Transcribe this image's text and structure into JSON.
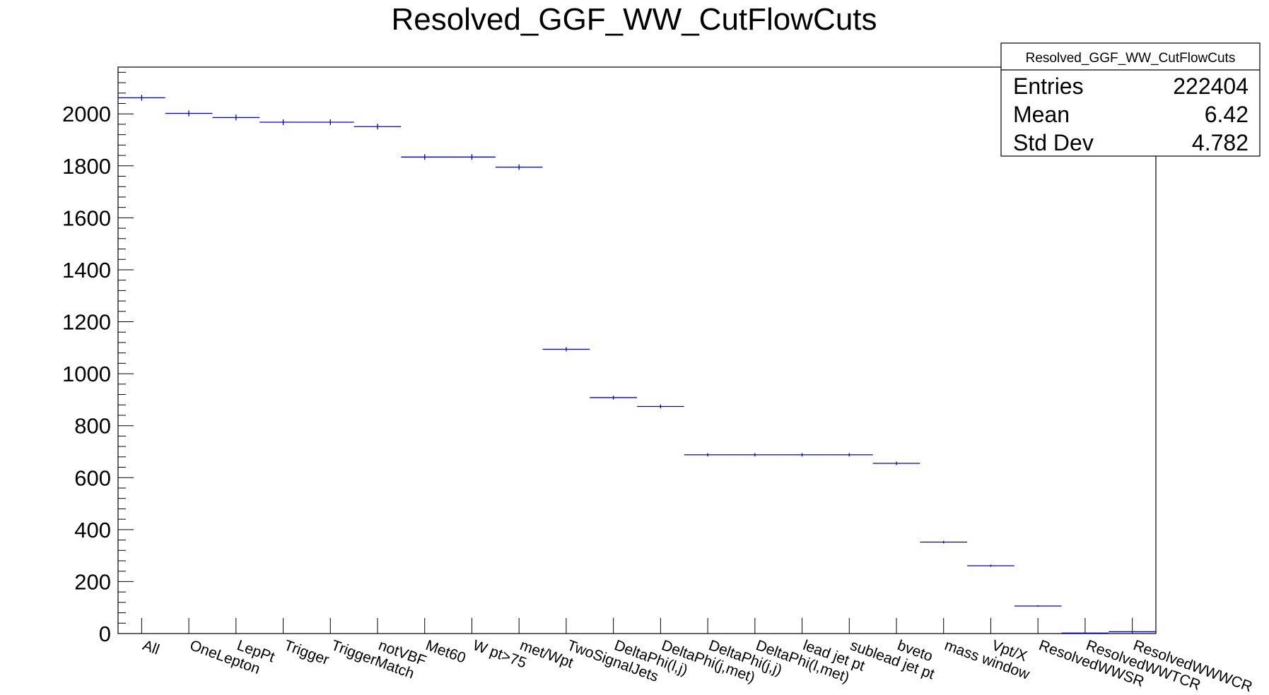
{
  "chart_data": {
    "type": "bar",
    "style": "histogram-markers",
    "title": "Resolved_GGF_WW_CutFlowCuts",
    "xlabel": "",
    "ylabel": "",
    "ylim": [
      0,
      2180
    ],
    "yticks": [
      0,
      200,
      400,
      600,
      800,
      1000,
      1200,
      1400,
      1600,
      1800,
      2000
    ],
    "grid": false,
    "line_color": "#0000cc",
    "categories": [
      "All",
      "OneLepton",
      "LepPt",
      "Trigger",
      "TriggerMatch",
      "notVBF",
      "Met60",
      "W pt>75",
      "met/Wpt",
      "TwoSignalJets",
      "DeltaPhi(l,j)",
      "DeltaPhi(j,met)",
      "DeltaPhi(j,j)",
      "DeltaPhi(l,met)",
      "lead jet pt",
      "sublead jet pt",
      "bveto",
      "mass window",
      "Vpt/X",
      "ResolvedWWSR",
      "ResolvedWWTCR",
      "ResolvedWWWCR"
    ],
    "values": [
      2062,
      2002,
      1986,
      1968,
      1968,
      1951,
      1834,
      1834,
      1795,
      1094,
      908,
      874,
      688,
      688,
      688,
      688,
      655,
      352,
      261,
      106,
      2,
      7
    ],
    "errors": [
      45,
      45,
      45,
      44,
      44,
      44,
      43,
      43,
      42,
      33,
      30,
      30,
      26,
      26,
      26,
      26,
      26,
      19,
      16,
      10,
      1,
      3
    ],
    "stats_box": {
      "title": "Resolved_GGF_WW_CutFlowCuts",
      "rows": [
        {
          "label": "Entries",
          "value": "222404"
        },
        {
          "label": "Mean",
          "value": "6.42"
        },
        {
          "label": "Std Dev",
          "value": "4.782"
        }
      ]
    }
  }
}
